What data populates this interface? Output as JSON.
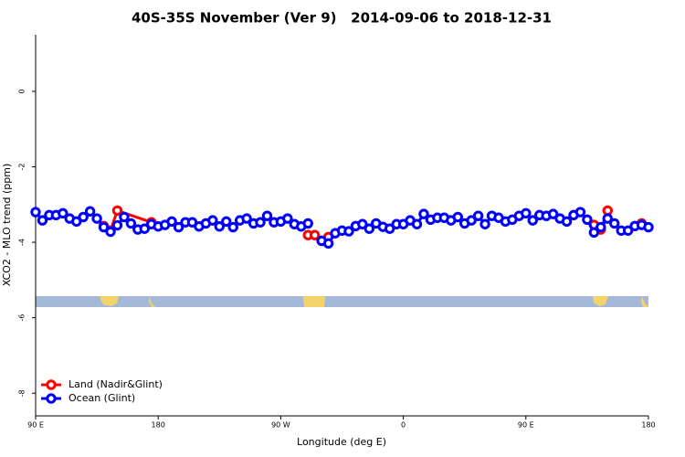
{
  "chart_data": {
    "type": "line",
    "title": "40S-35S November (Ver 9)   2014-09-06 to 2018-12-31",
    "x_label": "Longitude (deg E)",
    "y_label": "XCO2 - MLO trend (ppm)",
    "xlim": [
      90,
      540
    ],
    "xticks": [
      {
        "value": 90,
        "label": "90 E"
      },
      {
        "value": 180,
        "label": "180"
      },
      {
        "value": 270,
        "label": "90 W"
      },
      {
        "value": 360,
        "label": "0"
      },
      {
        "value": 450,
        "label": "90 E"
      },
      {
        "value": 540,
        "label": "180"
      }
    ],
    "ylim": [
      -8.6,
      1.5
    ],
    "yticks": [
      0,
      -2,
      -4,
      -6,
      -8
    ],
    "legend": "bottom-left",
    "series": [
      {
        "name": "Land (Nadir&Glint)",
        "color": "#ff0000",
        "x": [
          140,
          145,
          150,
          175,
          230,
          290,
          295,
          300,
          305,
          400,
          500,
          505,
          510,
          520,
          535
        ],
        "values": [
          -3.57,
          -3.69,
          -3.16,
          -3.47,
          null,
          -3.81,
          -3.81,
          -3.96,
          -3.86,
          null,
          -3.54,
          -3.66,
          -3.16,
          null,
          -3.5
        ]
      },
      {
        "name": "Ocean (Glint)",
        "color": "#0000ff",
        "x": [
          90,
          95,
          100,
          105,
          110,
          115,
          120,
          125,
          130,
          135,
          140,
          145,
          150,
          155,
          160,
          165,
          170,
          175,
          180,
          185,
          190,
          195,
          200,
          205,
          210,
          215,
          220,
          225,
          230,
          235,
          240,
          245,
          250,
          255,
          260,
          265,
          270,
          275,
          280,
          285,
          290,
          295,
          300,
          305,
          310,
          315,
          320,
          325,
          330,
          335,
          340,
          345,
          350,
          355,
          360,
          365,
          370,
          375,
          380,
          385,
          390,
          395,
          400,
          405,
          410,
          415,
          420,
          425,
          430,
          435,
          440,
          445,
          450,
          455,
          460,
          465,
          470,
          475,
          480,
          485,
          490,
          495,
          500,
          505,
          510,
          515,
          520,
          525,
          530,
          535,
          540
        ],
        "values": [
          -3.2,
          -3.42,
          -3.28,
          -3.28,
          -3.23,
          -3.37,
          -3.45,
          -3.33,
          -3.18,
          -3.37,
          -3.6,
          -3.72,
          -3.55,
          -3.33,
          -3.5,
          -3.66,
          -3.64,
          -3.52,
          -3.58,
          -3.54,
          -3.45,
          -3.6,
          -3.47,
          -3.47,
          -3.58,
          -3.5,
          -3.42,
          -3.58,
          -3.45,
          -3.6,
          -3.42,
          -3.37,
          -3.5,
          -3.47,
          -3.3,
          -3.47,
          -3.45,
          -3.37,
          -3.52,
          -3.58,
          -3.5,
          null,
          -3.96,
          -4.03,
          -3.76,
          -3.69,
          -3.71,
          -3.57,
          -3.52,
          -3.64,
          -3.5,
          -3.59,
          -3.64,
          -3.52,
          -3.52,
          -3.42,
          -3.52,
          -3.25,
          -3.4,
          -3.35,
          -3.35,
          -3.42,
          -3.33,
          -3.5,
          -3.42,
          -3.3,
          -3.52,
          -3.3,
          -3.35,
          -3.45,
          -3.4,
          -3.3,
          -3.23,
          -3.42,
          -3.28,
          -3.3,
          -3.25,
          -3.37,
          -3.45,
          -3.28,
          -3.2,
          -3.4,
          -3.74,
          -3.6,
          -3.37,
          -3.5,
          -3.69,
          -3.69,
          -3.57,
          -3.54,
          -3.6
        ]
      }
    ]
  }
}
